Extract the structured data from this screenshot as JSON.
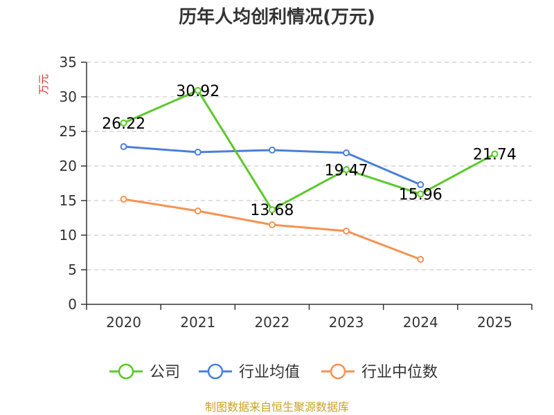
{
  "chart_data": {
    "type": "line",
    "title": "历年人均创利情况(万元)",
    "ylabel": "万元",
    "xlabel": "",
    "ylim": [
      0,
      35
    ],
    "yticks": [
      0,
      5,
      10,
      15,
      20,
      25,
      30,
      35
    ],
    "categories": [
      "2020",
      "2021",
      "2022",
      "2023",
      "2024",
      "2025"
    ],
    "grid": true,
    "legend_position": "bottom",
    "series": [
      {
        "name": "公司",
        "color": "#5cc82a",
        "values": [
          26.22,
          30.92,
          13.68,
          19.47,
          15.96,
          21.74
        ],
        "labels": [
          "26.22",
          "30.92",
          "13.68",
          "19.47",
          "15.96",
          "21.74"
        ]
      },
      {
        "name": "行业均值",
        "color": "#4a7fd8",
        "values": [
          22.8,
          22.0,
          22.3,
          21.9,
          17.3,
          null
        ]
      },
      {
        "name": "行业中位数",
        "color": "#f79152",
        "values": [
          15.2,
          13.5,
          11.5,
          10.6,
          6.5,
          null
        ]
      }
    ],
    "source": "制图数据来自恒生聚源数据库",
    "colors": {
      "axis": "#333333",
      "grid": "#cccccc",
      "ylabel": "#e0302e",
      "source": "#c9a227"
    }
  }
}
